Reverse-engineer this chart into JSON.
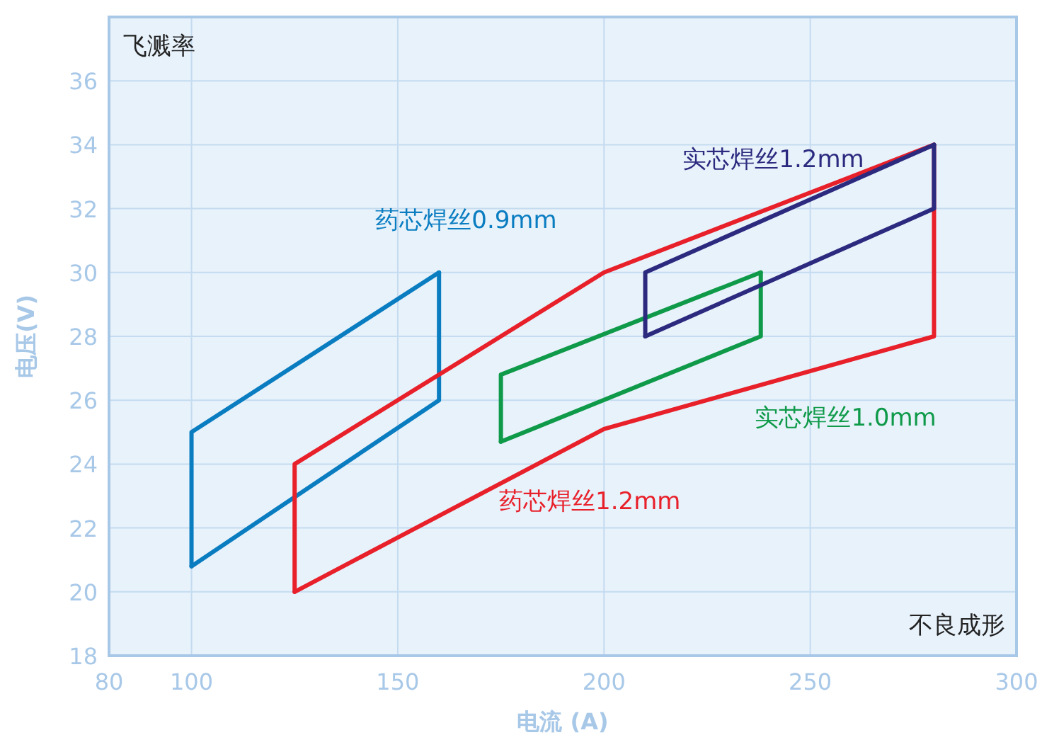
{
  "chart_data": {
    "type": "line",
    "xlabel": "电流 (A)",
    "ylabel": "电压(V)",
    "xlim": [
      80,
      300
    ],
    "ylim": [
      18,
      38
    ],
    "xticks": [
      80,
      100,
      150,
      200,
      250,
      300
    ],
    "yticks": [
      18,
      20,
      22,
      24,
      26,
      28,
      30,
      32,
      34,
      36
    ],
    "grid": true,
    "marker": "none",
    "line_style": "solid",
    "series": [
      {
        "name": "药芯焊丝0.9mm",
        "color": "#0a7dc1",
        "x": [
          100,
          100,
          160
        ],
        "values": [
          20.8,
          25,
          30
        ]
      },
      {
        "color": "#0a7dc1",
        "x": [
          100,
          160,
          160
        ],
        "values": [
          20.8,
          26,
          30
        ]
      },
      {
        "name": "药芯焊丝1.2mm",
        "color": "#e8202a",
        "x": [
          125,
          125,
          200,
          280
        ],
        "values": [
          20,
          24,
          30,
          34
        ]
      },
      {
        "color": "#e8202a",
        "x": [
          125,
          200,
          280,
          280
        ],
        "values": [
          20,
          25.1,
          28,
          34
        ]
      },
      {
        "name": "实芯焊丝1.0mm",
        "color": "#0f9a4a",
        "x": [
          175,
          175,
          238
        ],
        "values": [
          24.7,
          26.8,
          30
        ]
      },
      {
        "color": "#0f9a4a",
        "x": [
          175,
          238,
          238
        ],
        "values": [
          24.7,
          28,
          30
        ]
      },
      {
        "name": "实芯焊丝1.2mm",
        "color": "#2b2a7f",
        "x": [
          210,
          210,
          280
        ],
        "values": [
          28,
          30,
          34
        ]
      },
      {
        "color": "#2b2a7f",
        "x": [
          210,
          280,
          280
        ],
        "values": [
          28,
          32,
          34
        ]
      }
    ],
    "annotations": [
      "飞溅率",
      "不良成形"
    ]
  }
}
